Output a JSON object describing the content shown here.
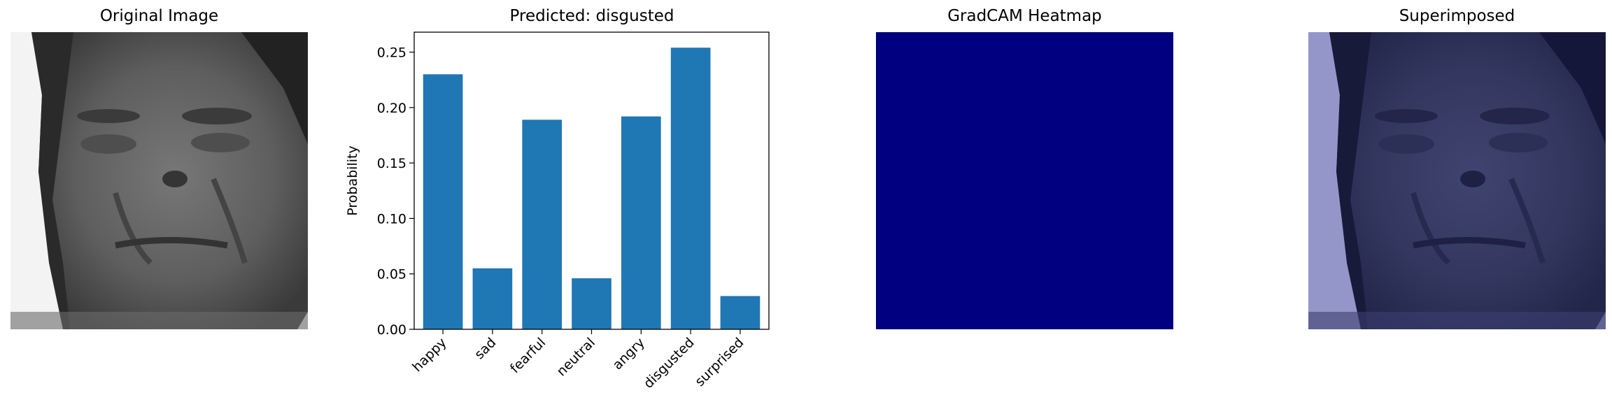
{
  "panels": {
    "original": {
      "title": "Original Image"
    },
    "chart": {
      "title": "Predicted: disgusted"
    },
    "heatmap": {
      "title": "GradCAM Heatmap",
      "color": "#000080"
    },
    "superimposed": {
      "title": "Superimposed",
      "tint": "#000080"
    }
  },
  "chart_data": {
    "type": "bar",
    "title": "Predicted: disgusted",
    "xlabel": "",
    "ylabel": "Probability",
    "categories": [
      "happy",
      "sad",
      "fearful",
      "neutral",
      "angry",
      "disgusted",
      "surprised"
    ],
    "values": [
      0.23,
      0.055,
      0.189,
      0.046,
      0.192,
      0.254,
      0.03
    ],
    "ylim": [
      0,
      0.268
    ],
    "yticks": [
      "0.00",
      "0.05",
      "0.10",
      "0.15",
      "0.20",
      "0.25"
    ],
    "bar_color": "#1f77b4",
    "grid": false
  }
}
